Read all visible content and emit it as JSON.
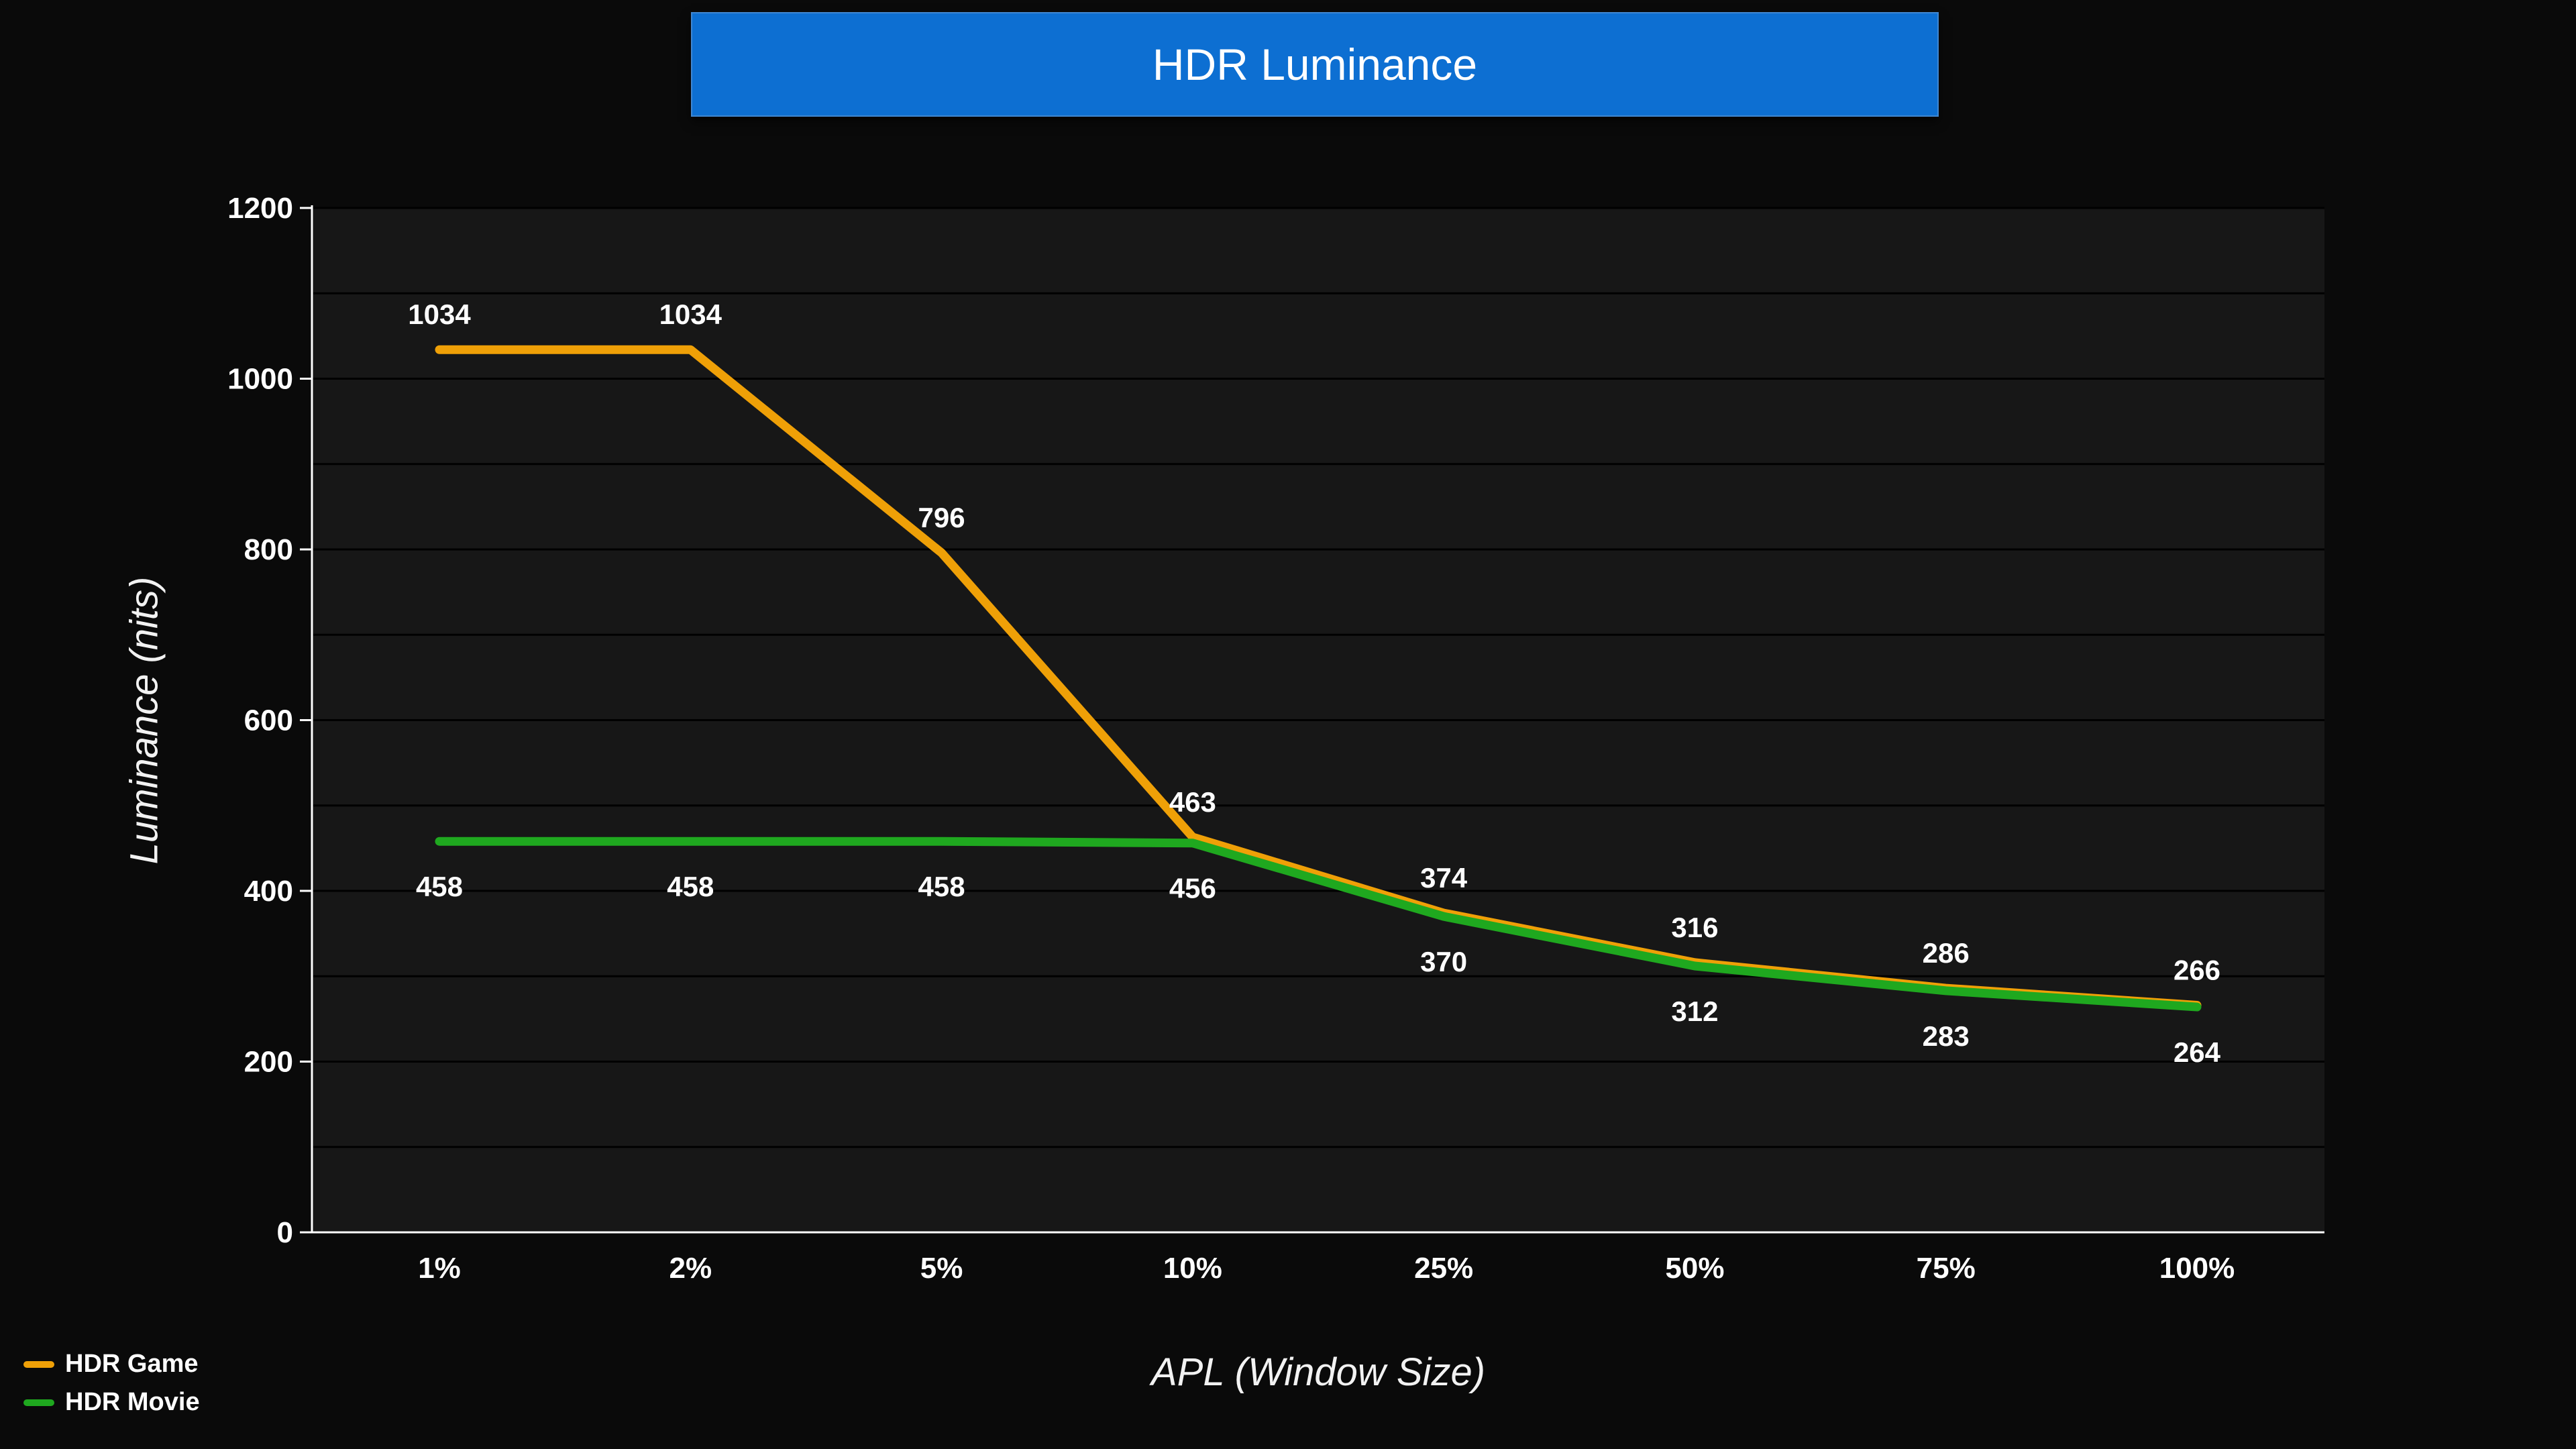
{
  "title": "HDR Luminance",
  "colors": {
    "background": "#0a0a0a",
    "plot_bg": "#171717",
    "grid": "#000000",
    "axis": "#ffffff",
    "text": "#ffffff",
    "title_bar": "#0d6fd2",
    "title_border": "#3f87d2"
  },
  "chart_data": {
    "type": "line",
    "title": "HDR Luminance",
    "xlabel": "APL (Window Size)",
    "ylabel": "Luminance (nits)",
    "categories": [
      "1%",
      "2%",
      "5%",
      "10%",
      "25%",
      "50%",
      "75%",
      "100%"
    ],
    "series": [
      {
        "name": "HDR Game",
        "color": "#EFA007",
        "values": [
          1034,
          1034,
          796,
          463,
          374,
          316,
          286,
          266
        ]
      },
      {
        "name": "HDR Movie",
        "color": "#1FA81F",
        "values": [
          458,
          458,
          458,
          456,
          370,
          312,
          283,
          264
        ]
      }
    ],
    "ylim": [
      0,
      1200
    ],
    "yticks": [
      0,
      200,
      400,
      600,
      800,
      1000,
      1200
    ],
    "grid_step": 100,
    "grid": true,
    "data_labels": true,
    "legend_position": "bottom-left"
  }
}
